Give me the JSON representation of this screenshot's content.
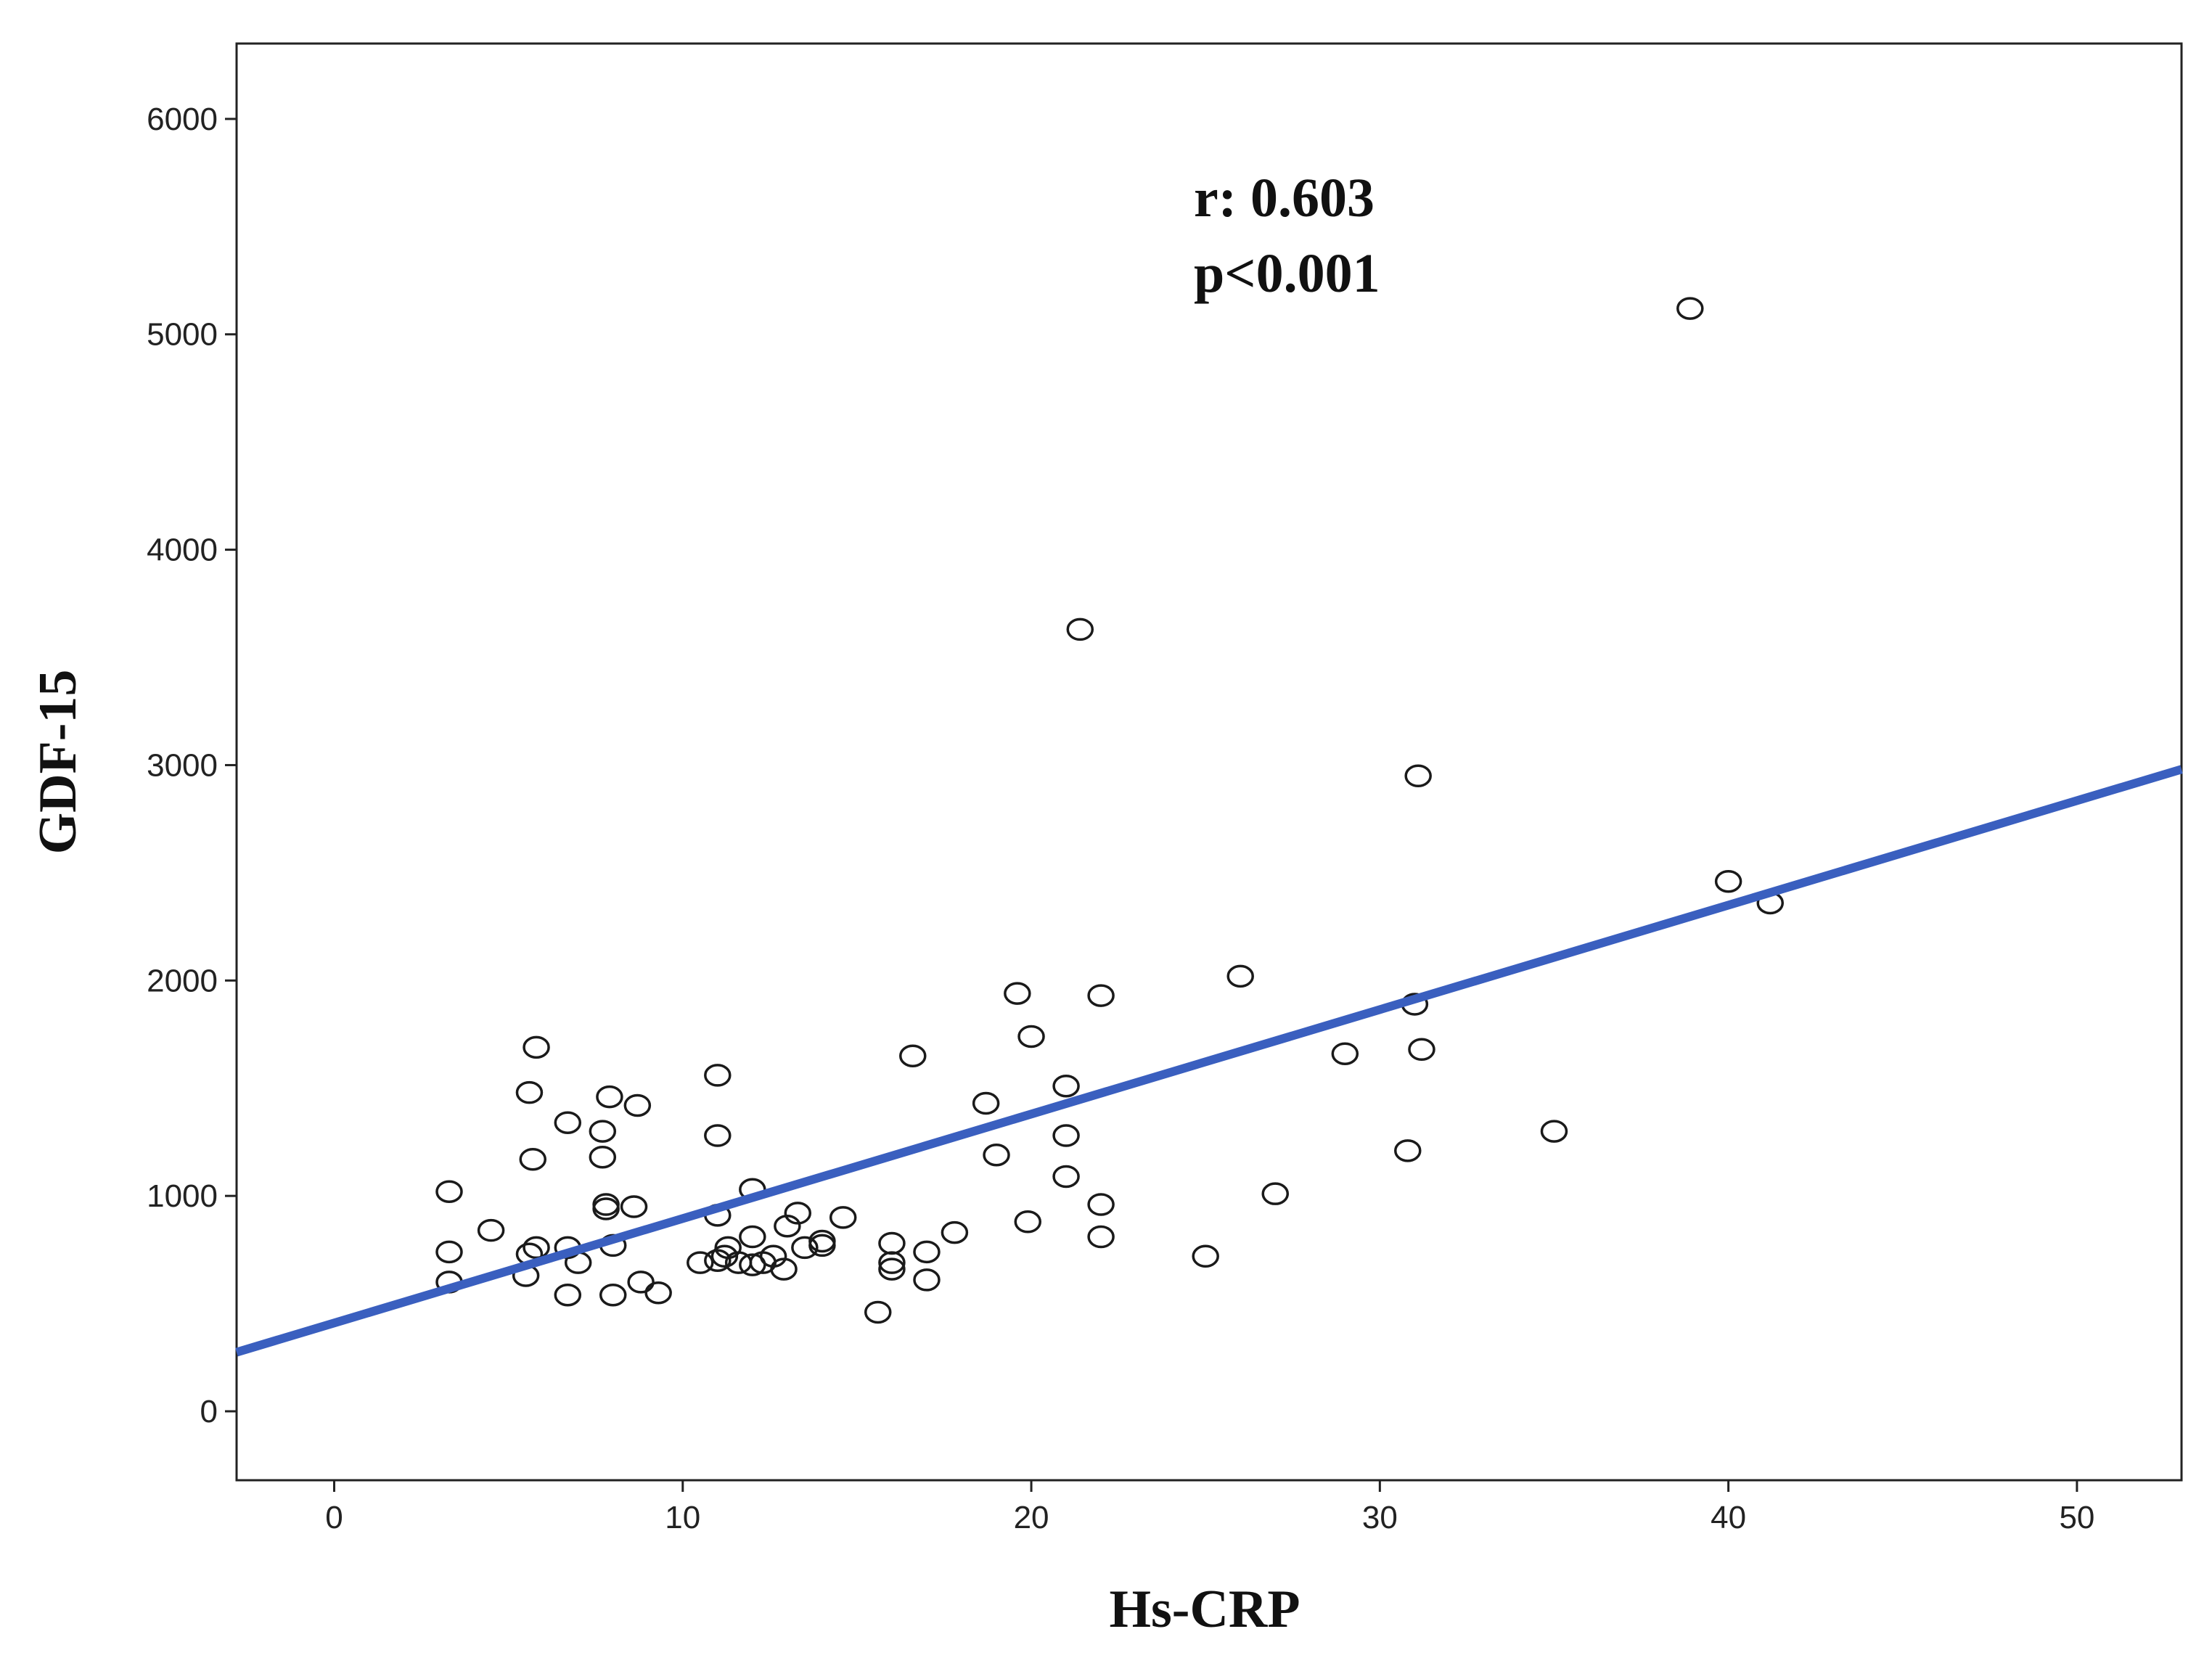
{
  "chart_data": {
    "type": "scatter",
    "title": "",
    "xlabel": "Hs-CRP",
    "ylabel": "GDF-15",
    "xlim": [
      -2.8,
      53
    ],
    "ylim": [
      -320,
      6350
    ],
    "xticks": [
      0,
      10,
      20,
      30,
      40,
      50
    ],
    "yticks": [
      0,
      1000,
      2000,
      3000,
      4000,
      5000,
      6000
    ],
    "xtick_labels": [
      "0",
      "10",
      "20",
      "30",
      "40",
      "50"
    ],
    "ytick_labels": [
      "0",
      "1000",
      "2000",
      "3000",
      "4000",
      "5000",
      "6000"
    ],
    "grid": false,
    "annotations": [
      "r: 0.603",
      "p<0.001"
    ],
    "fit_line": {
      "intercept": 410,
      "slope": 48.5,
      "color": "#3a5fbf"
    },
    "points": [
      {
        "x": 3.3,
        "y": 1020
      },
      {
        "x": 3.3,
        "y": 740
      },
      {
        "x": 3.3,
        "y": 600
      },
      {
        "x": 4.5,
        "y": 840
      },
      {
        "x": 5.5,
        "y": 630
      },
      {
        "x": 5.6,
        "y": 730
      },
      {
        "x": 5.6,
        "y": 1480
      },
      {
        "x": 5.7,
        "y": 1170
      },
      {
        "x": 5.8,
        "y": 1690
      },
      {
        "x": 5.8,
        "y": 760
      },
      {
        "x": 6.7,
        "y": 1340
      },
      {
        "x": 6.7,
        "y": 760
      },
      {
        "x": 6.7,
        "y": 540
      },
      {
        "x": 7.0,
        "y": 690
      },
      {
        "x": 7.7,
        "y": 1300
      },
      {
        "x": 7.7,
        "y": 1180
      },
      {
        "x": 7.8,
        "y": 940
      },
      {
        "x": 7.8,
        "y": 960
      },
      {
        "x": 7.9,
        "y": 1460
      },
      {
        "x": 8.0,
        "y": 770
      },
      {
        "x": 8.0,
        "y": 540
      },
      {
        "x": 8.6,
        "y": 950
      },
      {
        "x": 8.7,
        "y": 1420
      },
      {
        "x": 8.8,
        "y": 600
      },
      {
        "x": 9.3,
        "y": 550
      },
      {
        "x": 10.5,
        "y": 690
      },
      {
        "x": 11.0,
        "y": 1560
      },
      {
        "x": 11.0,
        "y": 1280
      },
      {
        "x": 11.0,
        "y": 910
      },
      {
        "x": 11.0,
        "y": 700
      },
      {
        "x": 11.2,
        "y": 720
      },
      {
        "x": 11.3,
        "y": 760
      },
      {
        "x": 11.6,
        "y": 690
      },
      {
        "x": 12.0,
        "y": 1030
      },
      {
        "x": 12.0,
        "y": 810
      },
      {
        "x": 12.0,
        "y": 680
      },
      {
        "x": 12.3,
        "y": 690
      },
      {
        "x": 12.6,
        "y": 720
      },
      {
        "x": 12.9,
        "y": 660
      },
      {
        "x": 13.0,
        "y": 860
      },
      {
        "x": 13.3,
        "y": 920
      },
      {
        "x": 13.5,
        "y": 760
      },
      {
        "x": 14.0,
        "y": 790
      },
      {
        "x": 14.0,
        "y": 770
      },
      {
        "x": 14.6,
        "y": 900
      },
      {
        "x": 15.6,
        "y": 460
      },
      {
        "x": 16.0,
        "y": 780
      },
      {
        "x": 16.0,
        "y": 690
      },
      {
        "x": 16.0,
        "y": 660
      },
      {
        "x": 16.6,
        "y": 1650
      },
      {
        "x": 17.0,
        "y": 740
      },
      {
        "x": 17.0,
        "y": 610
      },
      {
        "x": 17.8,
        "y": 830
      },
      {
        "x": 18.7,
        "y": 1430
      },
      {
        "x": 19.0,
        "y": 1190
      },
      {
        "x": 19.6,
        "y": 1940
      },
      {
        "x": 19.9,
        "y": 880
      },
      {
        "x": 20.0,
        "y": 1740
      },
      {
        "x": 21.0,
        "y": 1510
      },
      {
        "x": 21.0,
        "y": 1280
      },
      {
        "x": 21.0,
        "y": 1090
      },
      {
        "x": 21.4,
        "y": 3630
      },
      {
        "x": 22.0,
        "y": 1930
      },
      {
        "x": 22.0,
        "y": 960
      },
      {
        "x": 22.0,
        "y": 810
      },
      {
        "x": 25.0,
        "y": 720
      },
      {
        "x": 26.0,
        "y": 2020
      },
      {
        "x": 27.0,
        "y": 1010
      },
      {
        "x": 29.0,
        "y": 1660
      },
      {
        "x": 30.8,
        "y": 1210
      },
      {
        "x": 31.0,
        "y": 1890
      },
      {
        "x": 31.1,
        "y": 2950
      },
      {
        "x": 31.2,
        "y": 1680
      },
      {
        "x": 35.0,
        "y": 1300
      },
      {
        "x": 38.9,
        "y": 5120
      },
      {
        "x": 40.0,
        "y": 2460
      },
      {
        "x": 41.2,
        "y": 2360
      }
    ]
  }
}
